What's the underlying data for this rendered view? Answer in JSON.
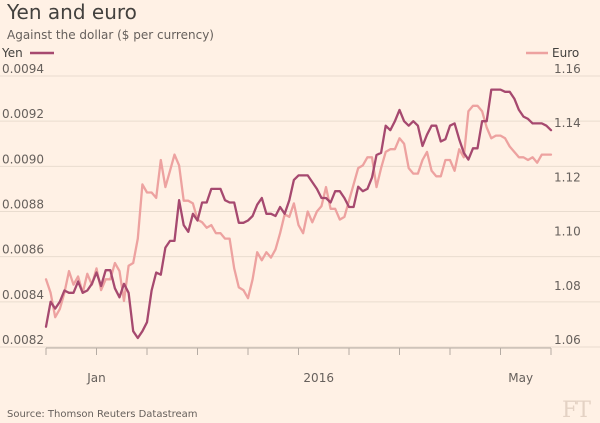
{
  "title": "Yen and euro",
  "subtitle": "Against the dollar ($ per currency)",
  "source": "Source: Thomson Reuters Datastream",
  "logo": "FT",
  "chart_data": {
    "type": "line",
    "title": "Yen and euro",
    "subtitle": "Against the dollar ($ per currency)",
    "left_axis": {
      "series": "Yen",
      "ylim": [
        0.0082,
        0.0094
      ],
      "ticks": [
        "0.0082",
        "0.0084",
        "0.0086",
        "0.0088",
        "0.0090",
        "0.0092",
        "0.0094"
      ]
    },
    "right_axis": {
      "series": "Euro",
      "ylim": [
        1.06,
        1.16
      ],
      "ticks": [
        "1.06",
        "1.08",
        "1.10",
        "1.12",
        "1.14",
        "1.16"
      ]
    },
    "x_labels": [
      {
        "label": "Jan",
        "t": 0.1
      },
      {
        "label": "2016",
        "t": 0.54
      },
      {
        "label": "May",
        "t": 0.94
      }
    ],
    "x_tick_count": 11,
    "series": [
      {
        "name": "Yen",
        "axis": "left",
        "color": "#a6496f",
        "values": [
          0.00829,
          0.0084,
          0.00837,
          0.0084,
          0.00845,
          0.00844,
          0.00844,
          0.00849,
          0.00844,
          0.00845,
          0.00848,
          0.00853,
          0.00847,
          0.00854,
          0.00854,
          0.00846,
          0.00842,
          0.00848,
          0.00844,
          0.00827,
          0.00824,
          0.00827,
          0.00831,
          0.00845,
          0.00853,
          0.00852,
          0.00864,
          0.00867,
          0.00867,
          0.00885,
          0.00874,
          0.00871,
          0.00879,
          0.00876,
          0.00884,
          0.00884,
          0.0089,
          0.0089,
          0.0089,
          0.00885,
          0.00884,
          0.00884,
          0.00875,
          0.00875,
          0.00876,
          0.00878,
          0.00883,
          0.00886,
          0.00879,
          0.00879,
          0.00878,
          0.00882,
          0.00879,
          0.00885,
          0.00894,
          0.00896,
          0.00896,
          0.00896,
          0.00893,
          0.0089,
          0.00886,
          0.00886,
          0.00884,
          0.00889,
          0.00889,
          0.00886,
          0.00882,
          0.00882,
          0.00891,
          0.00889,
          0.0089,
          0.00895,
          0.00905,
          0.00906,
          0.00918,
          0.00916,
          0.0092,
          0.00925,
          0.0092,
          0.00918,
          0.0092,
          0.00918,
          0.00909,
          0.00914,
          0.00918,
          0.00918,
          0.00911,
          0.00912,
          0.00918,
          0.00919,
          0.00912,
          0.00906,
          0.00903,
          0.00908,
          0.00908,
          0.0092,
          0.0092,
          0.00934,
          0.00934,
          0.00934,
          0.00933,
          0.00933,
          0.0093,
          0.00925,
          0.00922,
          0.00921,
          0.00919,
          0.00919,
          0.00919,
          0.00918,
          0.00916
        ]
      },
      {
        "name": "Euro",
        "axis": "right",
        "color": "#eda2a0",
        "values": [
          1.085,
          1.08,
          1.071,
          1.074,
          1.08,
          1.088,
          1.083,
          1.086,
          1.08,
          1.087,
          1.083,
          1.089,
          1.081,
          1.085,
          1.085,
          1.091,
          1.088,
          1.077,
          1.09,
          1.091,
          1.1,
          1.12,
          1.117,
          1.117,
          1.115,
          1.129,
          1.119,
          1.125,
          1.131,
          1.127,
          1.114,
          1.114,
          1.113,
          1.107,
          1.106,
          1.104,
          1.105,
          1.102,
          1.102,
          1.1,
          1.1,
          1.089,
          1.082,
          1.081,
          1.078,
          1.085,
          1.095,
          1.092,
          1.095,
          1.093,
          1.096,
          1.102,
          1.109,
          1.108,
          1.113,
          1.105,
          1.102,
          1.11,
          1.106,
          1.11,
          1.112,
          1.119,
          1.111,
          1.111,
          1.107,
          1.108,
          1.114,
          1.12,
          1.126,
          1.127,
          1.13,
          1.13,
          1.119,
          1.126,
          1.132,
          1.133,
          1.133,
          1.137,
          1.135,
          1.126,
          1.124,
          1.124,
          1.129,
          1.132,
          1.125,
          1.123,
          1.123,
          1.129,
          1.129,
          1.125,
          1.133,
          1.13,
          1.147,
          1.149,
          1.149,
          1.147,
          1.141,
          1.137,
          1.138,
          1.138,
          1.137,
          1.134,
          1.132,
          1.13,
          1.13,
          1.129,
          1.13,
          1.128,
          1.131,
          1.131,
          1.131
        ]
      }
    ]
  }
}
